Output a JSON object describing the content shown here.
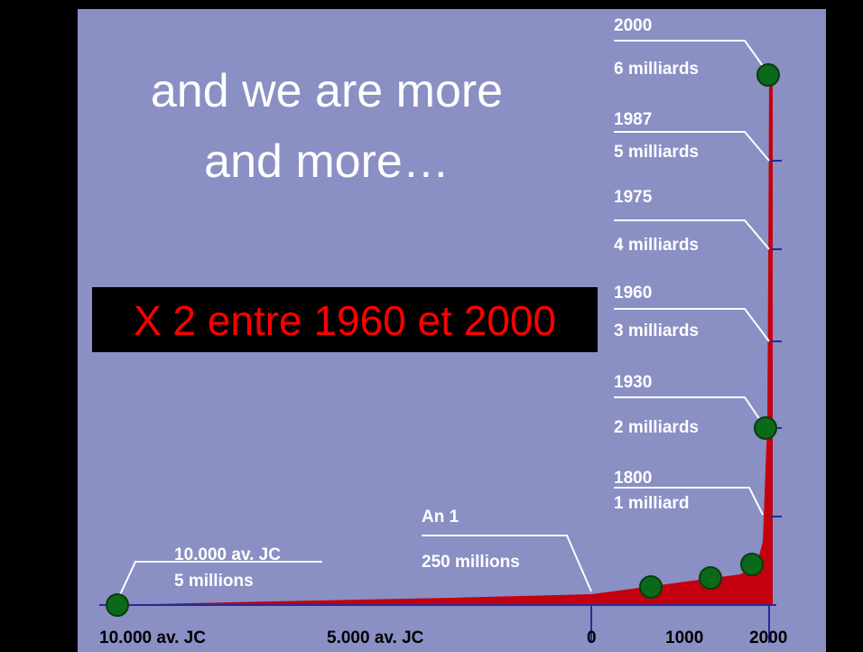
{
  "slide": {
    "title_lines": [
      "and we are more",
      "and more…"
    ],
    "callout": "X 2 entre 1960 et 2000"
  },
  "chart": {
    "x_labels": [
      "10.000 av. JC",
      "5.000 av. JC",
      "0",
      "1000",
      "2000"
    ],
    "annotations": [
      {
        "year": "2000",
        "population": "6 milliards"
      },
      {
        "year": "1987",
        "population": "5 milliards"
      },
      {
        "year": "1975",
        "population": "4 milliards"
      },
      {
        "year": "1960",
        "population": "3 milliards"
      },
      {
        "year": "1930",
        "population": "2 milliards"
      },
      {
        "year": "1800",
        "population": "1 milliard"
      },
      {
        "year": "An 1",
        "population": "250 millions"
      },
      {
        "year": "10.000 av. JC",
        "population": "5 millions"
      }
    ]
  }
}
